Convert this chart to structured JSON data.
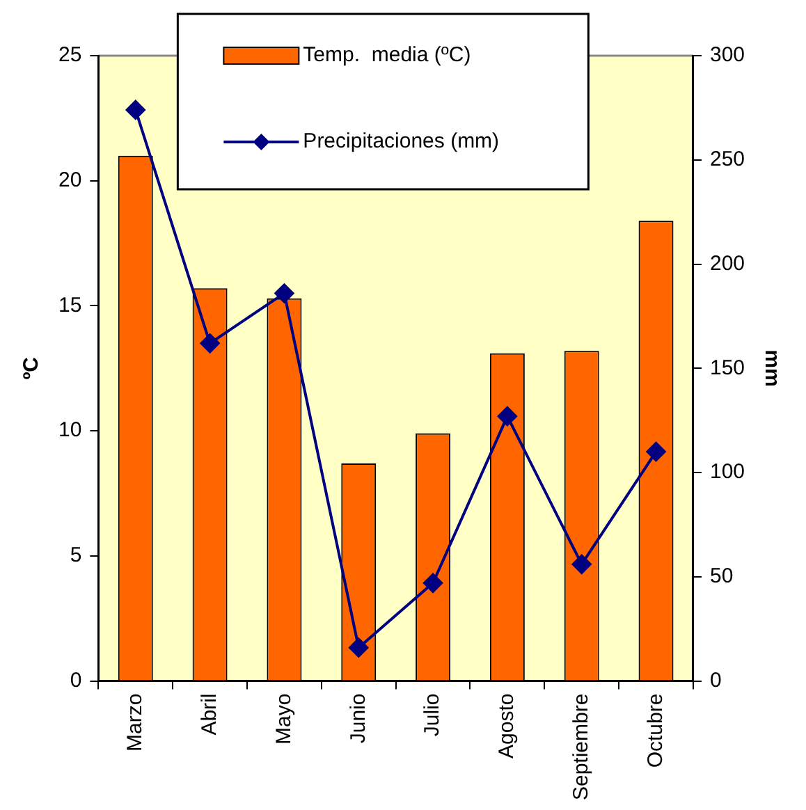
{
  "chart_data": {
    "type": "bar",
    "categories": [
      "Marzo",
      "Abril",
      "Mayo",
      "Junio",
      "Julio",
      "Agosto",
      "Septiembre",
      "Octubre"
    ],
    "series": [
      {
        "name": "Temp.  media (ºC)",
        "color": "#ff6600",
        "values": [
          21,
          15.7,
          15.3,
          8.7,
          9.9,
          13.1,
          13.2,
          18.4
        ]
      },
      {
        "name": "Precipitaciones (mm)",
        "type": "line",
        "axis": "y2",
        "color": "#000080",
        "marker": "diamond",
        "values": [
          274,
          162,
          186,
          16,
          47,
          127,
          56,
          110
        ]
      }
    ],
    "ylabel": "ºC",
    "y2label": "mm",
    "ylim": [
      0,
      25
    ],
    "yticks": [
      0,
      5,
      10,
      15,
      20,
      25
    ],
    "y2lim": [
      0,
      300
    ],
    "y2ticks": [
      0,
      50,
      100,
      150,
      200,
      250,
      300
    ],
    "grid": false,
    "legend": "top"
  }
}
